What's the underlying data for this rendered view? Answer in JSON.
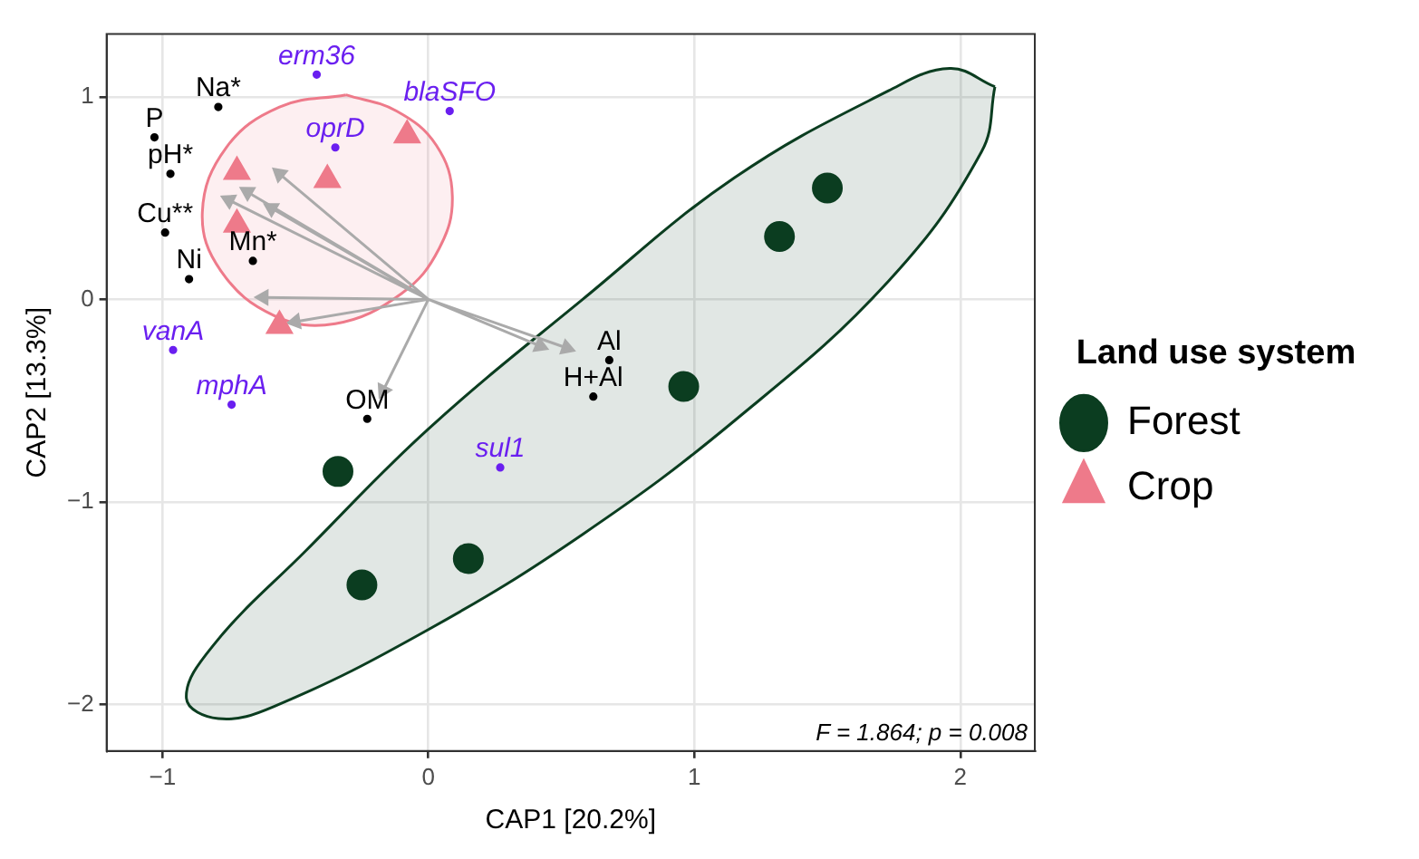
{
  "chart_data": {
    "type": "scatter",
    "xlabel": "CAP1 [20.2%]",
    "ylabel": "CAP2 [13.3%]",
    "legend_title": "Land use system",
    "legend": "right",
    "grid": true,
    "xlim": [
      -1.21,
      2.28
    ],
    "xticks": [
      -1,
      0,
      1,
      2
    ],
    "ylim": [
      -2.23,
      1.31
    ],
    "yticks": [
      -2,
      -1,
      0,
      1
    ],
    "annotations": [
      "F = 1.864; p = 0.008"
    ],
    "series": [
      {
        "type": "area",
        "color": "#0b3d20",
        "x": [
          2.13,
          1.96,
          1.73,
          1.15,
          0.58,
          0,
          -0.46,
          -0.81,
          -0.91,
          -0.79,
          -0.58,
          0,
          0.58,
          1.15,
          1.73,
          2.08,
          2.13
        ],
        "values": [
          1.05,
          1.14,
          1.03,
          0.6,
          0,
          -0.64,
          -1.24,
          -1.71,
          -1.97,
          -2.07,
          -2.01,
          -1.63,
          -1.16,
          -0.6,
          0.09,
          0.73,
          1.05
        ]
      },
      {
        "type": "area",
        "color": "#ee7a8a",
        "x": [
          -0.31,
          -0.12,
          0.03,
          0.09,
          0.04,
          -0.1,
          -0.35,
          -0.58,
          -0.78,
          -0.85,
          -0.76,
          -0.56,
          -0.31
        ],
        "values": [
          1.01,
          0.93,
          0.76,
          0.51,
          0.25,
          0.03,
          -0.12,
          -0.08,
          0.14,
          0.43,
          0.75,
          0.95,
          1.01
        ]
      },
      {
        "type": "line",
        "color": "#aaaaaa",
        "x": [
          0,
          -0.56,
          null,
          0,
          -0.68,
          null,
          0,
          -0.75,
          null,
          0,
          -0.59,
          null,
          0,
          -0.62,
          null,
          0,
          -0.5,
          null,
          0,
          -0.17,
          null,
          0,
          0.52,
          null,
          0,
          0.42
        ],
        "values": [
          0,
          0.62,
          null,
          0,
          0.53,
          null,
          0,
          0.49,
          null,
          0,
          0.45,
          null,
          0,
          0.01,
          null,
          0,
          -0.11,
          null,
          0,
          -0.45,
          null,
          0,
          -0.24,
          null,
          0,
          -0.23
        ]
      },
      {
        "name": "Forest",
        "marker": "circle",
        "color": "#0b3d20",
        "x": [
          1.5,
          1.32,
          0.96,
          -0.34,
          -0.25,
          0.15
        ],
        "values": [
          0.55,
          0.31,
          -0.43,
          -0.85,
          -1.41,
          -1.28
        ]
      },
      {
        "name": "Crop",
        "marker": "triangle",
        "color": "#ee7a8a",
        "x": [
          -0.08,
          -0.72,
          -0.38,
          -0.72,
          -0.56
        ],
        "values": [
          0.81,
          0.63,
          0.59,
          0.37,
          -0.13
        ]
      },
      {
        "marker": "circle",
        "color": "#000000",
        "x": [
          -0.79,
          -1.03,
          -0.97,
          -0.99,
          -0.66,
          -0.9,
          -0.23,
          0.68,
          0.62
        ],
        "values": [
          0.95,
          0.8,
          0.62,
          0.33,
          0.19,
          0.1,
          -0.59,
          -0.3,
          -0.48
        ],
        "value_labels": [
          "Na*",
          "P",
          "pH*",
          "Cu**",
          "Mn*",
          "Ni",
          "OM",
          "Al",
          "H+Al"
        ]
      },
      {
        "marker": "circle",
        "color": "#6a1ff0",
        "x": [
          -0.42,
          0.08,
          -0.35,
          -0.96,
          -0.74,
          0.27
        ],
        "values": [
          1.11,
          0.93,
          0.75,
          -0.25,
          -0.52,
          -0.83
        ],
        "value_labels": [
          "erm36",
          "blaSFO",
          "oprD",
          "vanA",
          "mphA",
          "sul1"
        ]
      }
    ]
  }
}
